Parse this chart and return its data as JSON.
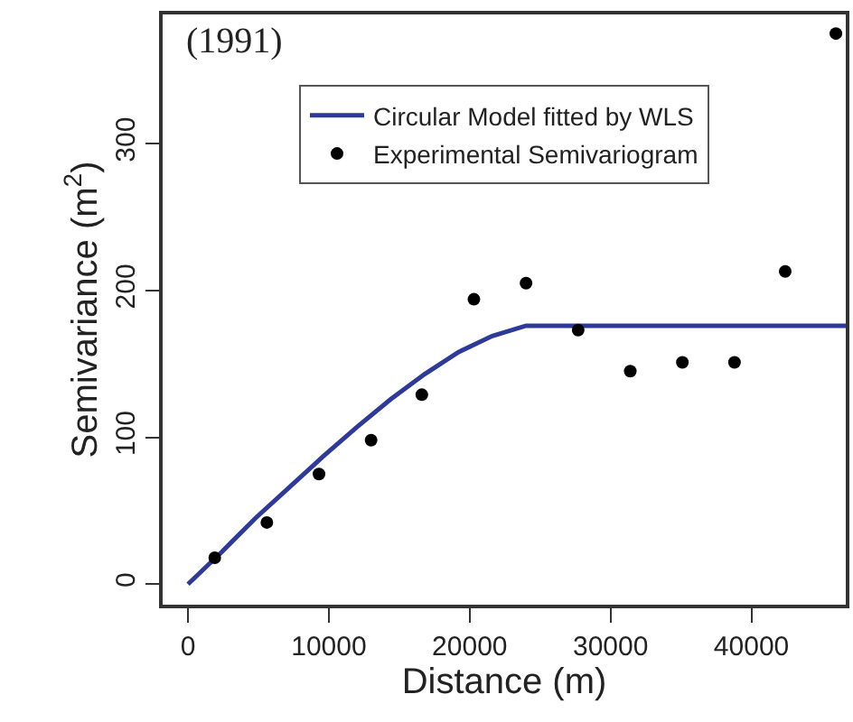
{
  "chart_data": {
    "type": "scatter",
    "title": "(1991)",
    "xlabel": "Distance (m)",
    "ylabel": "Semivariance (m$^{2}$)",
    "series": [
      {
        "name": "Circular Model fitted by WLS",
        "type": "line",
        "color": "#2e3a9a",
        "marker": "none",
        "line_style": "solid",
        "x": [
          0,
          2400,
          4800,
          7200,
          9600,
          12000,
          14400,
          16800,
          19200,
          21600,
          24000,
          46700
        ],
        "values": [
          0,
          22,
          45,
          66,
          87,
          107,
          126,
          143,
          158,
          169,
          176,
          176
        ]
      },
      {
        "name": "Experimental Semivariogram",
        "color": "#000000",
        "marker": "circle",
        "x": [
          1900,
          5600,
          9300,
          13000,
          16600,
          20300,
          24000,
          27700,
          31400,
          35100,
          38800,
          42400,
          46000
        ],
        "values": [
          18,
          42,
          75,
          98,
          129,
          194,
          205,
          173,
          145,
          151,
          151,
          213,
          375
        ]
      }
    ],
    "xlim": [
      -1800,
      46700
    ],
    "ylim": [
      -14,
      388
    ],
    "xticks": [
      0,
      10000,
      20000,
      30000,
      40000
    ],
    "yticks": [
      0,
      100,
      200,
      300
    ],
    "grid": false,
    "legend": "top"
  }
}
